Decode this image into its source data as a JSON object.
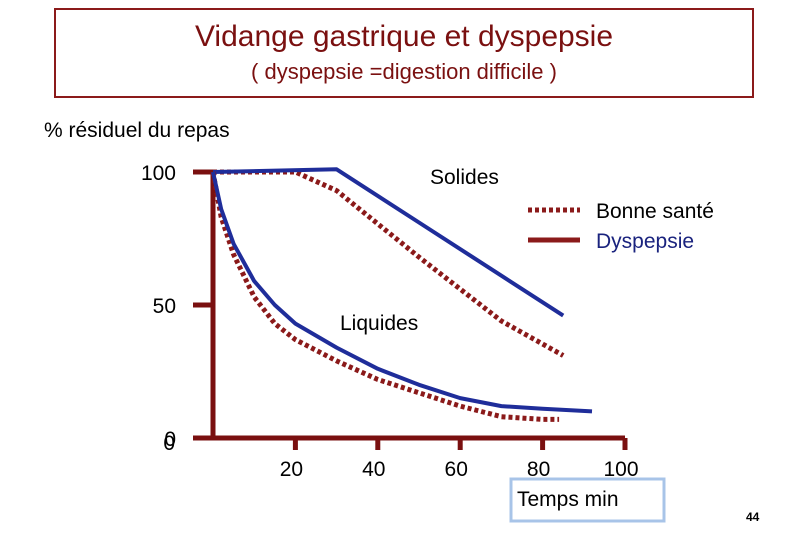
{
  "slide": {
    "title": "Vidange gastrique et dyspepsie",
    "subtitle": "( dyspepsie =digestion difficile )",
    "page_number": "44"
  },
  "chart_data": {
    "type": "line",
    "ylabel": "% résiduel du repas",
    "xlabel": "Temps min",
    "xlim": [
      0,
      100
    ],
    "ylim": [
      0,
      100
    ],
    "x_ticks": [
      20,
      40,
      60,
      80,
      100
    ],
    "y_ticks": [
      0,
      50,
      100
    ],
    "annotations": [
      "Solides",
      "Liquides"
    ],
    "legend": [
      {
        "label": "Bonne santé",
        "style": "dotted",
        "color": "#8b1a1a",
        "text_color": "#000000"
      },
      {
        "label": "Dyspepsie",
        "style": "solid",
        "color": "#8b1a1a",
        "text_color": "#1a237e"
      }
    ],
    "series": [
      {
        "group": "Solides",
        "condition": "Bonne santé",
        "style": "dotted",
        "color": "#8b1a1a",
        "points": [
          [
            0,
            100
          ],
          [
            20,
            100
          ],
          [
            30,
            93
          ],
          [
            50,
            68
          ],
          [
            70,
            44
          ],
          [
            85,
            31
          ]
        ]
      },
      {
        "group": "Solides",
        "condition": "Dyspepsie",
        "style": "solid",
        "color": "#1f2d9a",
        "points": [
          [
            0,
            100
          ],
          [
            30,
            101
          ],
          [
            50,
            81
          ],
          [
            70,
            61
          ],
          [
            85,
            46
          ]
        ]
      },
      {
        "group": "Liquides",
        "condition": "Bonne santé",
        "style": "dotted",
        "color": "#8b1a1a",
        "points": [
          [
            0,
            100
          ],
          [
            2,
            83
          ],
          [
            5,
            69
          ],
          [
            10,
            53
          ],
          [
            15,
            43
          ],
          [
            20,
            37
          ],
          [
            30,
            29
          ],
          [
            40,
            22
          ],
          [
            50,
            17
          ],
          [
            60,
            12
          ],
          [
            70,
            8
          ],
          [
            80,
            7
          ],
          [
            84,
            7
          ]
        ]
      },
      {
        "group": "Liquides",
        "condition": "Dyspepsie",
        "style": "solid",
        "color": "#1f2d9a",
        "points": [
          [
            0,
            100
          ],
          [
            2,
            86
          ],
          [
            5,
            73
          ],
          [
            10,
            59
          ],
          [
            15,
            50
          ],
          [
            20,
            43
          ],
          [
            30,
            34
          ],
          [
            40,
            26
          ],
          [
            50,
            20
          ],
          [
            60,
            15
          ],
          [
            70,
            12
          ],
          [
            80,
            11
          ],
          [
            92,
            10
          ]
        ]
      }
    ]
  }
}
